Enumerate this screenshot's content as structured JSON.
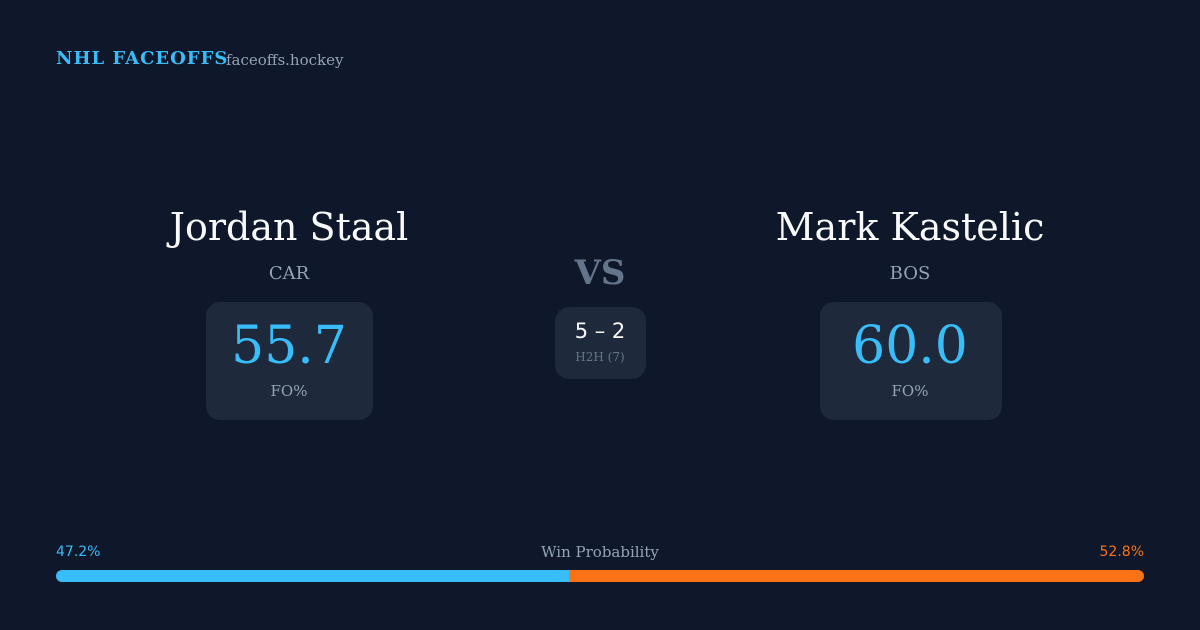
{
  "header": {
    "brand": "NHL FACEOFFS",
    "site": "faceoffs.hockey"
  },
  "players": [
    {
      "name": "Jordan Staal",
      "team": "CAR",
      "stat": "55.7",
      "stat_label": "FO%"
    },
    {
      "name": "Mark Kastelic",
      "team": "BOS",
      "stat": "60.0",
      "stat_label": "FO%"
    }
  ],
  "versus": {
    "label": "VS",
    "record": "5 – 2",
    "note": "H2H (7)"
  },
  "win_probability": {
    "title": "Win Probability",
    "segments": [
      {
        "value": 47.2,
        "label": "47.2%",
        "color": "#38bdf8"
      },
      {
        "value": 52.8,
        "label": "52.8%",
        "color": "#f97316"
      }
    ]
  }
}
